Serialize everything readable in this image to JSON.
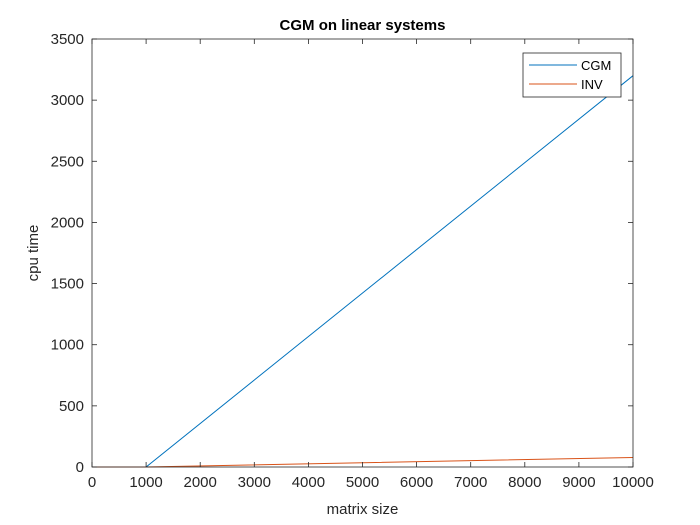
{
  "chart_data": {
    "type": "line",
    "title": "CGM on linear systems",
    "xlabel": "matrix size",
    "ylabel": "cpu time",
    "xlim": [
      0,
      10000
    ],
    "ylim": [
      0,
      3500
    ],
    "xticks": [
      0,
      1000,
      2000,
      3000,
      4000,
      5000,
      6000,
      7000,
      8000,
      9000,
      10000
    ],
    "yticks": [
      0,
      500,
      1000,
      1500,
      2000,
      2500,
      3000,
      3500
    ],
    "grid": false,
    "legend_position": "top-right",
    "series": [
      {
        "name": "CGM",
        "color": "#0072BD",
        "x": [
          10,
          1000,
          10000
        ],
        "y": [
          0,
          0,
          3200
        ]
      },
      {
        "name": "INV",
        "color": "#D95319",
        "x": [
          10,
          1000,
          10000
        ],
        "y": [
          0,
          0,
          78
        ]
      }
    ]
  }
}
